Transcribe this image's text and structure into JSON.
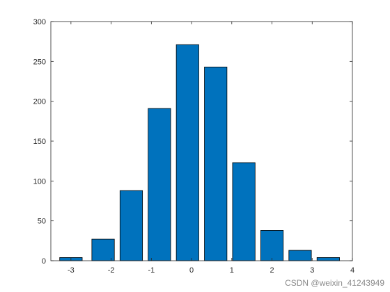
{
  "chart_data": {
    "type": "bar",
    "categories": [
      -3.1,
      -2.2,
      -1.2,
      -0.8,
      -0.1,
      0.4,
      1.1,
      1.9,
      2.6,
      3.4
    ],
    "bar_centers": [
      -3.0,
      -2.2,
      -1.5,
      -0.8,
      -0.1,
      0.6,
      1.3,
      2.0,
      2.7,
      3.4
    ],
    "values": [
      4,
      27,
      88,
      191,
      271,
      243,
      123,
      38,
      13,
      4
    ],
    "xlim": [
      -3.5,
      4
    ],
    "ylim": [
      0,
      300
    ],
    "xticks": [
      -3,
      -2,
      -1,
      0,
      1,
      2,
      3,
      4
    ],
    "yticks": [
      0,
      50,
      100,
      150,
      200,
      250,
      300
    ],
    "bar_color": "#0072BD",
    "edge_color": "#000000",
    "grid": false,
    "legend": "none"
  },
  "watermark": "CSDN @weixin_41243949"
}
